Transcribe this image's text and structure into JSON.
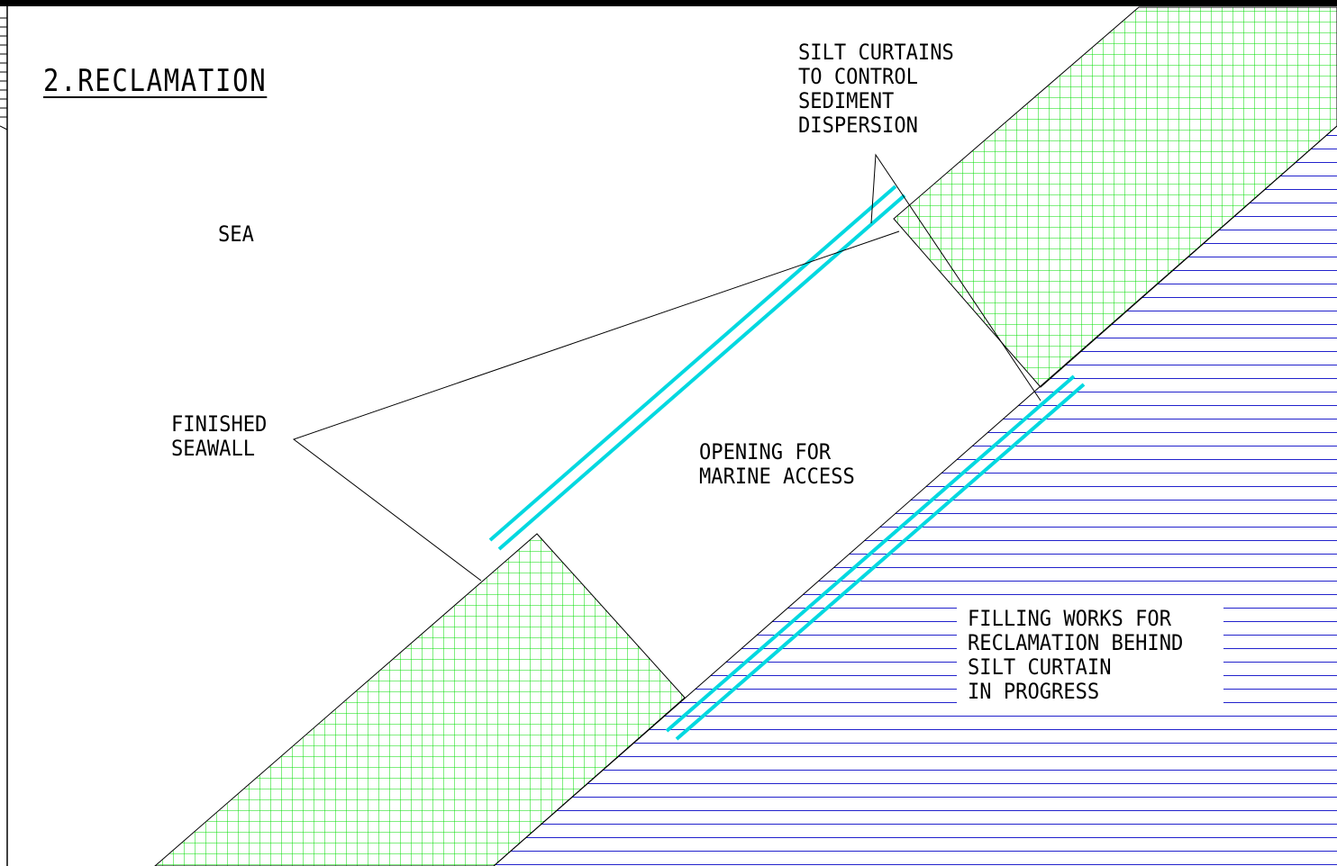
{
  "title": "2.RECLAMATION",
  "labels": {
    "sea": "SEA",
    "silt_curtains": [
      "SILT CURTAINS",
      "TO CONTROL",
      "SEDIMENT",
      "DISPERSION"
    ],
    "finished_seawall": [
      "FINISHED",
      "SEAWALL"
    ],
    "opening": [
      "OPENING FOR",
      "MARINE ACCESS"
    ],
    "filling_works": [
      "FILLING WORKS FOR",
      "RECLAMATION BEHIND",
      "SILT CURTAIN",
      "IN PROGRESS"
    ]
  },
  "colors": {
    "seawall_hatch": "#00dd00",
    "fill_hatch": "#2222cc",
    "silt_curtain": "#00d8e0",
    "linework": "#000000"
  }
}
